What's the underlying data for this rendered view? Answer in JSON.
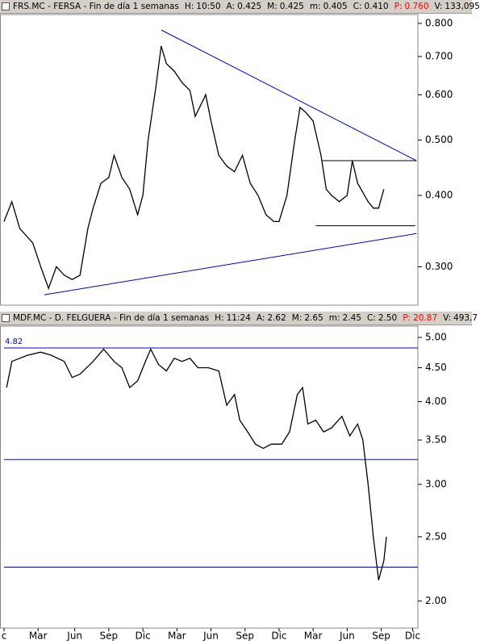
{
  "chart_data": [
    {
      "type": "line",
      "header": {
        "title": "FRS.MC - FERSA - Fin de día 1 semanas",
        "fields": [
          {
            "label": "H:",
            "value": "10:50"
          },
          {
            "label": "A:",
            "value": "0.425"
          },
          {
            "label": "M:",
            "value": "0.425"
          },
          {
            "label": "m:",
            "value": "0.405"
          },
          {
            "label": "C:",
            "value": "0.410"
          },
          {
            "label": "P:",
            "value": "0.760",
            "color": "#ff0000"
          },
          {
            "label": "V:",
            "value": "133,095"
          }
        ]
      },
      "log_scale": true,
      "color": "#000000",
      "xlim": [
        0,
        158
      ],
      "ylim": [
        0.257,
        0.829
      ],
      "yticks": [
        {
          "value": 0.3,
          "label": "0.300"
        },
        {
          "value": 0.4,
          "label": "0.400"
        },
        {
          "value": 0.5,
          "label": "0.500"
        },
        {
          "value": 0.6,
          "label": "0.600"
        },
        {
          "value": 0.7,
          "label": "0.700"
        },
        {
          "value": 0.8,
          "label": "0.800"
        }
      ],
      "x": [
        0,
        3,
        6,
        11,
        14,
        17,
        20,
        23,
        26,
        29,
        32,
        34,
        37,
        40,
        42,
        45,
        48,
        51,
        53,
        55,
        58,
        60,
        62,
        65,
        68,
        71,
        73,
        77,
        79,
        82,
        85,
        88,
        91,
        94,
        97,
        100,
        103,
        105,
        108,
        111,
        113,
        115,
        118,
        121,
        123,
        125,
        128,
        131,
        133,
        135,
        139,
        141,
        143,
        145
      ],
      "values": [
        0.36,
        0.39,
        0.35,
        0.33,
        0.3,
        0.275,
        0.3,
        0.29,
        0.285,
        0.29,
        0.35,
        0.38,
        0.42,
        0.43,
        0.47,
        0.43,
        0.41,
        0.37,
        0.4,
        0.5,
        0.62,
        0.73,
        0.68,
        0.66,
        0.63,
        0.61,
        0.55,
        0.6,
        0.54,
        0.47,
        0.45,
        0.44,
        0.47,
        0.42,
        0.4,
        0.37,
        0.36,
        0.36,
        0.4,
        0.5,
        0.57,
        0.56,
        0.54,
        0.47,
        0.41,
        0.4,
        0.39,
        0.4,
        0.46,
        0.42,
        0.39,
        0.38,
        0.38,
        0.41
      ],
      "lines": [
        {
          "x": [
            60,
            157.5
          ],
          "y": [
            0.779,
            0.46
          ],
          "color": "#0000cc"
        },
        {
          "x": [
            15.4,
            157.5
          ],
          "y": [
            0.268,
            0.343
          ],
          "color": "#0000cc"
        },
        {
          "x": [
            121.5,
            157.5
          ],
          "y": [
            0.46,
            0.46
          ],
          "color": "#000000"
        },
        {
          "x": [
            119,
            157
          ],
          "y": [
            0.354,
            0.354
          ],
          "color": "#000000"
        }
      ]
    },
    {
      "type": "line",
      "header": {
        "title": "MDF.MC - D. FELGUERA - Fin de día 1 semanas",
        "fields": [
          {
            "label": "H:",
            "value": "11:24"
          },
          {
            "label": "A:",
            "value": "2.62"
          },
          {
            "label": "M:",
            "value": "2.65"
          },
          {
            "label": "m:",
            "value": "2.45"
          },
          {
            "label": "C:",
            "value": "2.50"
          },
          {
            "label": "P:",
            "value": "20.87",
            "color": "#ff0000"
          },
          {
            "label": "V:",
            "value": "493,7"
          }
        ]
      },
      "log_scale": true,
      "color": "#000000",
      "xlim": [
        0,
        158
      ],
      "ylim": [
        1.82,
        5.2
      ],
      "yticks": [
        {
          "value": 2,
          "label": "2.00"
        },
        {
          "value": 2.5,
          "label": "2.50"
        },
        {
          "value": 3,
          "label": "3.00"
        },
        {
          "value": 3.5,
          "label": "3.50"
        },
        {
          "value": 4,
          "label": "4.00"
        },
        {
          "value": 4.5,
          "label": "4.50"
        },
        {
          "value": 5,
          "label": "5.00"
        }
      ],
      "xticks": [
        {
          "value": 0,
          "label": "c"
        },
        {
          "value": 13,
          "label": "Mar"
        },
        {
          "value": 27,
          "label": "Jun"
        },
        {
          "value": 40,
          "label": "Sep"
        },
        {
          "value": 53,
          "label": "Dic"
        },
        {
          "value": 66,
          "label": "Mar"
        },
        {
          "value": 79,
          "label": "Jun"
        },
        {
          "value": 92,
          "label": "Sep"
        },
        {
          "value": 105,
          "label": "Dic"
        },
        {
          "value": 118,
          "label": "Mar"
        },
        {
          "value": 131,
          "label": "Jun"
        },
        {
          "value": 144,
          "label": "Sep"
        },
        {
          "value": 156,
          "label": "Dic"
        }
      ],
      "x": [
        1,
        3,
        6,
        9,
        14,
        18,
        23,
        26,
        29,
        34,
        38,
        42,
        45,
        48,
        51,
        54,
        56,
        59,
        62,
        65,
        68,
        71,
        74,
        78,
        82,
        85,
        88,
        90,
        93,
        96,
        99,
        102,
        106,
        109,
        112,
        114,
        116,
        119,
        122,
        125,
        129,
        132,
        135,
        137,
        139,
        141,
        143,
        145,
        146
      ],
      "values": [
        4.2,
        4.6,
        4.65,
        4.7,
        4.75,
        4.7,
        4.6,
        4.35,
        4.4,
        4.6,
        4.8,
        4.6,
        4.5,
        4.2,
        4.3,
        4.6,
        4.8,
        4.55,
        4.45,
        4.65,
        4.6,
        4.65,
        4.5,
        4.5,
        4.45,
        3.95,
        4.1,
        3.75,
        3.6,
        3.45,
        3.4,
        3.45,
        3.45,
        3.6,
        4.1,
        4.2,
        3.7,
        3.75,
        3.6,
        3.65,
        3.8,
        3.55,
        3.7,
        3.5,
        3.0,
        2.5,
        2.15,
        2.3,
        2.5
      ],
      "lines": [
        {
          "x": [
            0,
            158
          ],
          "y": [
            4.82,
            4.82
          ],
          "color": "#0000cc",
          "label": "4.82"
        },
        {
          "x": [
            0,
            158
          ],
          "y": [
            3.27,
            3.27
          ],
          "color": "#0000cc"
        },
        {
          "x": [
            0,
            158
          ],
          "y": [
            2.25,
            2.25
          ],
          "color": "#0000cc"
        }
      ]
    }
  ]
}
